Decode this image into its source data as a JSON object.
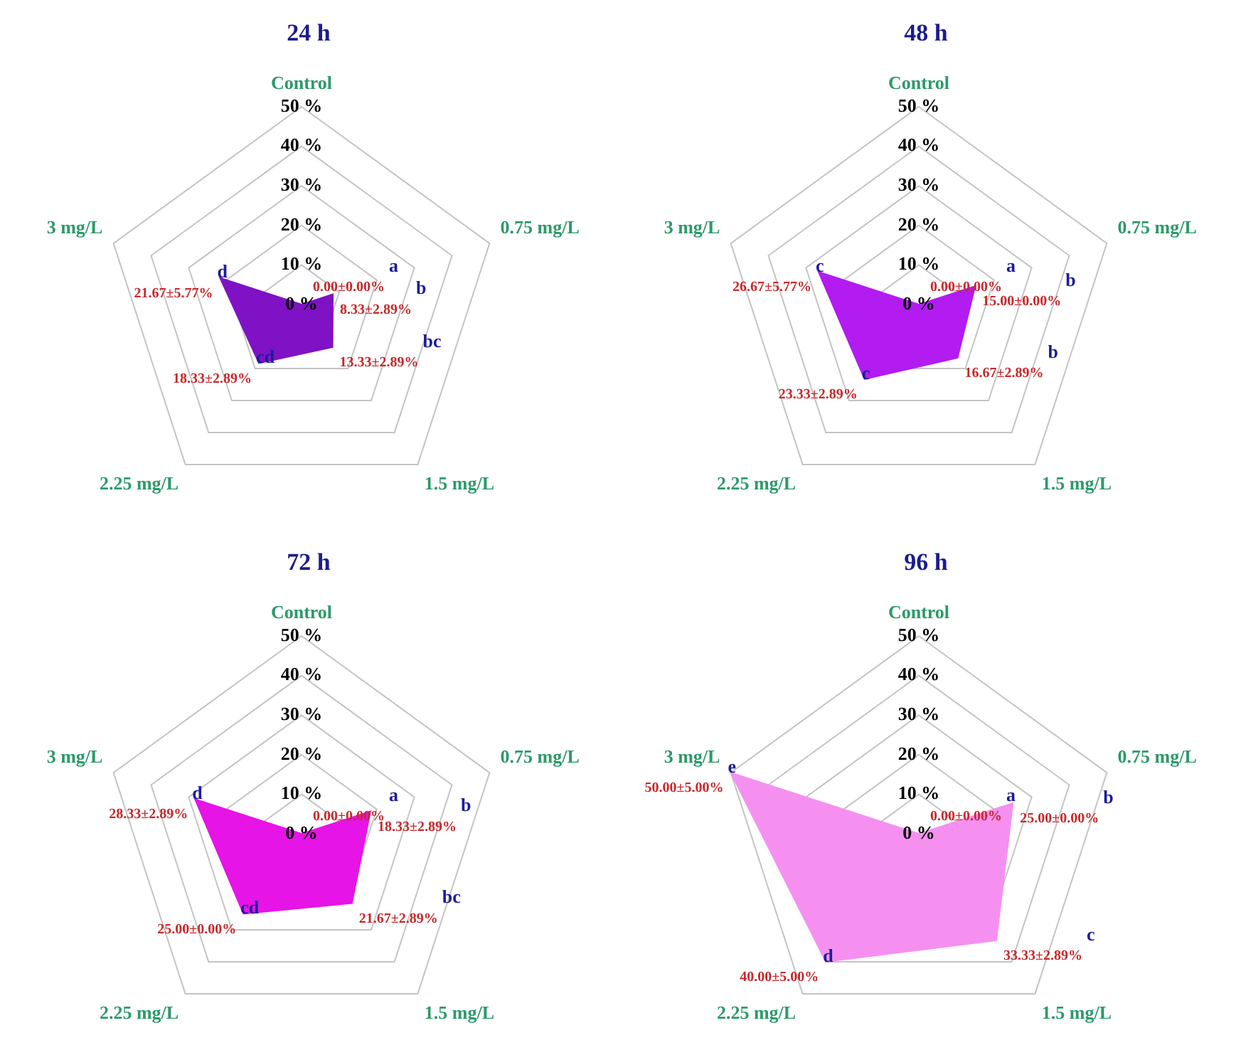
{
  "chart_data": [
    {
      "type": "radar",
      "title": "24 h",
      "categories": [
        "Control",
        "0.75 mg/L",
        "1.5 mg/L",
        "2.25 mg/L",
        "3 mg/L"
      ],
      "series": [
        {
          "color": "#7f12c4",
          "values": [
            0,
            8.33,
            13.33,
            18.33,
            21.67
          ],
          "value_labels": [
            "0.00±0.00%",
            "8.33±2.89%",
            "13.33±2.89%",
            "18.33±2.89%",
            "21.67±5.77%"
          ]
        }
      ],
      "ylim": [
        0,
        50
      ],
      "yticks": [
        {
          "value": 0,
          "label": "0 %"
        },
        {
          "value": 10,
          "label": "10 %"
        },
        {
          "value": 20,
          "label": "20 %"
        },
        {
          "value": 30,
          "label": "30 %"
        },
        {
          "value": 40,
          "label": "40 %"
        },
        {
          "value": 50,
          "label": "50 %"
        }
      ],
      "grid": true,
      "annotations": [
        "a",
        "b",
        "bc",
        "cd",
        "d"
      ]
    },
    {
      "type": "radar",
      "title": "48 h",
      "categories": [
        "Control",
        "0.75 mg/L",
        "1.5 mg/L",
        "2.25 mg/L",
        "3 mg/L"
      ],
      "series": [
        {
          "color": "#b21cf0",
          "values": [
            0,
            15,
            16.67,
            23.33,
            26.67
          ],
          "value_labels": [
            "0.00±0.00%",
            "15.00±0.00%",
            "16.67±2.89%",
            "23.33±2.89%",
            "26.67±5.77%"
          ]
        }
      ],
      "ylim": [
        0,
        50
      ],
      "yticks": [
        {
          "value": 0,
          "label": "0 %"
        },
        {
          "value": 10,
          "label": "10 %"
        },
        {
          "value": 20,
          "label": "20 %"
        },
        {
          "value": 30,
          "label": "30 %"
        },
        {
          "value": 40,
          "label": "40 %"
        },
        {
          "value": 50,
          "label": "50 %"
        }
      ],
      "grid": true,
      "annotations": [
        "a",
        "b",
        "b",
        "c",
        "c"
      ]
    },
    {
      "type": "radar",
      "title": "72 h",
      "categories": [
        "Control",
        "0.75 mg/L",
        "1.5 mg/L",
        "2.25 mg/L",
        "3 mg/L"
      ],
      "series": [
        {
          "color": "#e614e6",
          "values": [
            0,
            18.33,
            21.67,
            25,
            28.33
          ],
          "value_labels": [
            "0.00±0.00%",
            "18.33±2.89%",
            "21.67±2.89%",
            "25.00±0.00%",
            "28.33±2.89%"
          ]
        }
      ],
      "ylim": [
        0,
        50
      ],
      "yticks": [
        {
          "value": 0,
          "label": "0 %"
        },
        {
          "value": 10,
          "label": "10 %"
        },
        {
          "value": 20,
          "label": "20 %"
        },
        {
          "value": 30,
          "label": "30 %"
        },
        {
          "value": 40,
          "label": "40 %"
        },
        {
          "value": 50,
          "label": "50 %"
        }
      ],
      "grid": true,
      "annotations": [
        "a",
        "b",
        "bc",
        "cd",
        "d"
      ]
    },
    {
      "type": "radar",
      "title": "96 h",
      "categories": [
        "Control",
        "0.75 mg/L",
        "1.5 mg/L",
        "2.25 mg/L",
        "3 mg/L"
      ],
      "series": [
        {
          "color": "#f590f0",
          "values": [
            0,
            25,
            33.33,
            40,
            50
          ],
          "value_labels": [
            "0.00±0.00%",
            "25.00±0.00%",
            "33.33±2.89%",
            "40.00±5.00%",
            "50.00±5.00%"
          ]
        }
      ],
      "ylim": [
        0,
        50
      ],
      "yticks": [
        {
          "value": 0,
          "label": "0 %"
        },
        {
          "value": 10,
          "label": "10 %"
        },
        {
          "value": 20,
          "label": "20 %"
        },
        {
          "value": 30,
          "label": "30 %"
        },
        {
          "value": 40,
          "label": "40 %"
        },
        {
          "value": 50,
          "label": "50 %"
        }
      ],
      "grid": true,
      "annotations": [
        "a",
        "b",
        "c",
        "d",
        "e"
      ]
    }
  ]
}
